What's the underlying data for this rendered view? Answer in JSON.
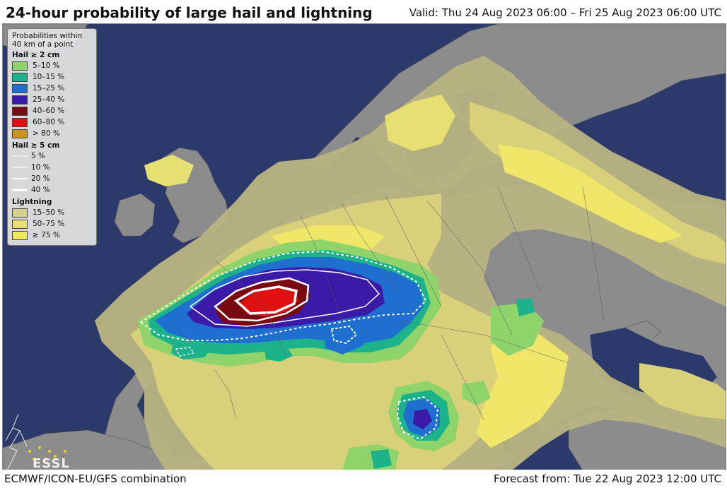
{
  "header": {
    "title": "24-hour probability of large hail and lightning",
    "valid": "Valid: Thu 24 Aug 2023 06:00 – Fri 25 Aug 2023 06:00 UTC"
  },
  "footer": {
    "model": "ECMWF/ICON-EU/GFS combination",
    "forecast": "Forecast from: Tue 22 Aug 2023 12:00 UTC"
  },
  "logo": {
    "text": "ESSL"
  },
  "legend": {
    "heading": "Probabilities within 40 km of a point",
    "hail2": {
      "title": "Hail ≥ 2 cm",
      "items": [
        {
          "label": "5–10 %",
          "color": "#8fd46a"
        },
        {
          "label": "10–15 %",
          "color": "#1db38a"
        },
        {
          "label": "15–25 %",
          "color": "#1f6fd0"
        },
        {
          "label": "25–40 %",
          "color": "#3a1aa6"
        },
        {
          "label": "40–60 %",
          "color": "#7a0a12"
        },
        {
          "label": "60–80 %",
          "color": "#e01010"
        },
        {
          "label": "> 80 %",
          "color": "#c8961e"
        }
      ]
    },
    "hail5": {
      "title": "Hail ≥ 5 cm",
      "items": [
        {
          "label": "5 %",
          "style": "dotted"
        },
        {
          "label": "10 %",
          "style": "thin"
        },
        {
          "label": "20 %",
          "style": "medium"
        },
        {
          "label": "40 %",
          "style": "thick"
        }
      ]
    },
    "lightning": {
      "title": "Lightning",
      "items": [
        {
          "label": "15–50 %",
          "color": "#d6cf8e"
        },
        {
          "label": "50–75 %",
          "color": "#e6df72"
        },
        {
          "label": "≥ 75 %",
          "color": "#f2e95a"
        }
      ]
    }
  },
  "colors": {
    "sea": "#2b3a6b",
    "land": "#8c8c8c",
    "lightning_low": "#b9b481",
    "lightning_mid": "#d8d07a",
    "lightning_high": "#efe66a"
  }
}
